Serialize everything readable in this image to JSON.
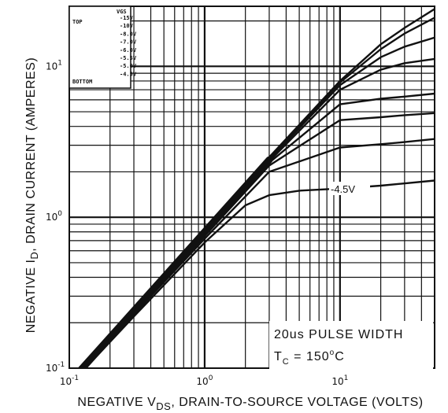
{
  "chart_data": {
    "type": "line",
    "title": "",
    "xlabel": "NEGATIVE V_DS, DRAIN-TO-SOURCE VOLTAGE (VOLTS)",
    "ylabel": "NEGATIVE I_D, DRAIN CURRENT (AMPERES)",
    "xlim": [
      0.1,
      50
    ],
    "ylim": [
      0.1,
      25
    ],
    "xscale": "log",
    "yscale": "log",
    "grid": true,
    "x_ticks": [
      {
        "value": 0.1,
        "base": "10",
        "exp": "-1"
      },
      {
        "value": 1,
        "base": "10",
        "exp": "0"
      },
      {
        "value": 10,
        "base": "10",
        "exp": "1"
      }
    ],
    "y_ticks": [
      {
        "value": 0.1,
        "base": "10",
        "exp": "-1"
      },
      {
        "value": 1,
        "base": "10",
        "exp": "0"
      },
      {
        "value": 10,
        "base": "10",
        "exp": "1"
      }
    ],
    "legend": {
      "placement": "top-left",
      "header": "VGS",
      "top_label": "TOP",
      "bottom_label": "BOTTOM",
      "entries": [
        "-15V",
        "-10V",
        "-8.0V",
        "-7.0V",
        "-6.0V",
        "-5.5V",
        "-5.0V",
        "-4.5V"
      ]
    },
    "annotations": {
      "pulse": "20us PULSE WIDTH",
      "temp_prefix": "T",
      "temp_sub": "C",
      "temp_value": " = 150",
      "temp_deg": "o",
      "temp_unit": "C",
      "curve_label": "-4.5V"
    },
    "series": [
      {
        "name": "-15V",
        "x": [
          0.1,
          0.3,
          1,
          3,
          10,
          20,
          30,
          50
        ],
        "y": [
          0.085,
          0.25,
          0.82,
          2.5,
          8.0,
          14.0,
          18.0,
          24.0
        ]
      },
      {
        "name": "-10V",
        "x": [
          0.1,
          0.3,
          1,
          3,
          10,
          20,
          30,
          50
        ],
        "y": [
          0.083,
          0.245,
          0.8,
          2.45,
          7.8,
          13.0,
          16.5,
          21.0
        ]
      },
      {
        "name": "-8.0V",
        "x": [
          0.1,
          0.3,
          1,
          3,
          10,
          20,
          30,
          50
        ],
        "y": [
          0.082,
          0.24,
          0.79,
          2.4,
          7.5,
          11.5,
          13.5,
          15.5
        ]
      },
      {
        "name": "-7.0V",
        "x": [
          0.1,
          0.3,
          1,
          3,
          10,
          20,
          30,
          50
        ],
        "y": [
          0.081,
          0.238,
          0.78,
          2.35,
          7.0,
          9.5,
          10.5,
          11.2
        ]
      },
      {
        "name": "-6.0V",
        "x": [
          0.1,
          0.3,
          1,
          3,
          10,
          20,
          30,
          50
        ],
        "y": [
          0.08,
          0.235,
          0.77,
          2.3,
          5.6,
          6.1,
          6.3,
          6.6
        ]
      },
      {
        "name": "-5.5V",
        "x": [
          0.1,
          0.3,
          1,
          3,
          10,
          20,
          30,
          50
        ],
        "y": [
          0.079,
          0.232,
          0.75,
          2.2,
          4.4,
          4.6,
          4.75,
          4.9
        ]
      },
      {
        "name": "-5.0V",
        "x": [
          0.1,
          0.3,
          1,
          3,
          10,
          20,
          30,
          50
        ],
        "y": [
          0.078,
          0.228,
          0.72,
          2.0,
          2.9,
          3.05,
          3.15,
          3.3
        ]
      },
      {
        "name": "-4.5V",
        "x": [
          0.1,
          0.3,
          1,
          2,
          3,
          5,
          10,
          20,
          50
        ],
        "y": [
          0.077,
          0.22,
          0.68,
          1.2,
          1.4,
          1.5,
          1.55,
          1.62,
          1.75
        ]
      }
    ]
  }
}
